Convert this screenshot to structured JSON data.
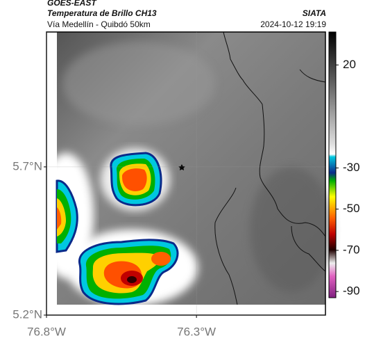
{
  "header": {
    "title": "GOES-EAST",
    "subtitle": "Temperatura de Brillo CH13",
    "region": "Vía Medellín - Quibdó 50km",
    "source": "SIATA",
    "datetime": "2024-10-12 19:19"
  },
  "map": {
    "xlim": [
      -76.8,
      -75.87
    ],
    "ylim": [
      5.2,
      6.155
    ],
    "xticks": [
      {
        "value": -76.8,
        "label": "76.8°W"
      },
      {
        "value": -76.3,
        "label": "76.3°W"
      }
    ],
    "yticks": [
      {
        "value": 5.7,
        "label": "5.7°N"
      },
      {
        "value": 5.2,
        "label": "5.2°N"
      }
    ]
  },
  "colorbar": {
    "lim": [
      -93,
      36
    ],
    "ticks": [
      20,
      -30,
      -50,
      -70,
      -90
    ]
  }
}
